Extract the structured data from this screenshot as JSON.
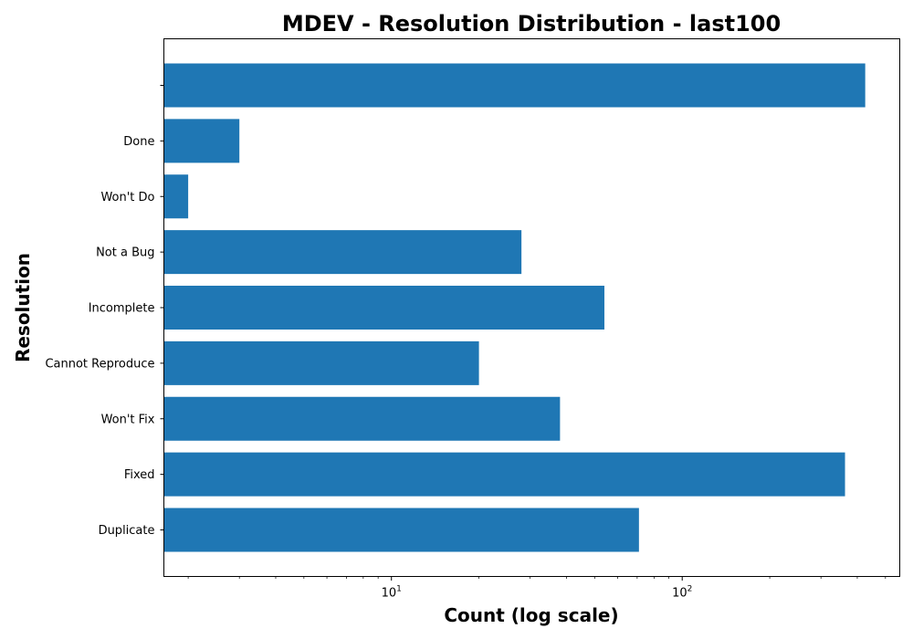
{
  "chart_data": {
    "type": "bar",
    "orientation": "horizontal",
    "title": "MDEV - Resolution Distribution - last100",
    "xlabel": "Count (log scale)",
    "ylabel": "Resolution",
    "x_scale": "log",
    "xlim": [
      1.65,
      560
    ],
    "x_ticks": [
      {
        "value": 10,
        "base": "10",
        "exp": "1"
      },
      {
        "value": 100,
        "base": "10",
        "exp": "2"
      }
    ],
    "categories": [
      "Duplicate",
      "Fixed",
      "Won't Fix",
      "Cannot Reproduce",
      "Incomplete",
      "Not a Bug",
      "Won't Do",
      "Done",
      ""
    ],
    "values": [
      71,
      363,
      38,
      20,
      54,
      28,
      2,
      3,
      426
    ],
    "bar_color": "#1f77b4",
    "grid": false,
    "legend": "none"
  }
}
